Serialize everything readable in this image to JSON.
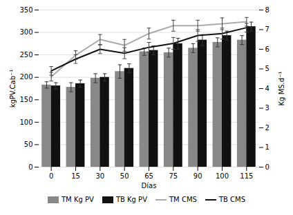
{
  "chart_data": {
    "type": "bar",
    "xlabel": "Días",
    "ylabel": "kgPV.Cab⁻¹",
    "y2label": "Kg MS.d⁻¹",
    "categories": [
      "0",
      "15",
      "30",
      "50",
      "65",
      "75",
      "90",
      "100",
      "115"
    ],
    "series": [
      {
        "name": "TM Kg PV",
        "type": "bar",
        "color": "#888888",
        "values": [
          183,
          178,
          198,
          213,
          257,
          255,
          265,
          278,
          283
        ],
        "errors": [
          7,
          10,
          10,
          15,
          8,
          10,
          10,
          10,
          10
        ]
      },
      {
        "name": "TB Kg PV",
        "type": "bar",
        "color": "#111111",
        "values": [
          181,
          186,
          200,
          220,
          260,
          275,
          283,
          293,
          313
        ],
        "errors": [
          7,
          8,
          8,
          10,
          10,
          12,
          12,
          10,
          10
        ]
      },
      {
        "name": "TM CMS",
        "type": "line",
        "axis": "y2",
        "color": "#aaaaaa",
        "values": [
          4.6,
          5.7,
          6.5,
          6.2,
          6.8,
          7.2,
          7.2,
          7.3,
          7.4
        ],
        "errors": [
          0.22,
          0.22,
          0.25,
          0.3,
          0.28,
          0.28,
          0.28,
          0.3,
          0.22
        ]
      },
      {
        "name": "TB CMS",
        "type": "line",
        "axis": "y2",
        "color": "#111111",
        "values": [
          4.9,
          5.5,
          6.0,
          5.8,
          6.1,
          6.3,
          6.7,
          6.8,
          7.1
        ],
        "errors": [
          0.22,
          0.22,
          0.22,
          0.28,
          0.25,
          0.3,
          0.3,
          0.28,
          0.22
        ]
      }
    ],
    "ylim": [
      0,
      350
    ],
    "yticks": [
      0,
      50,
      100,
      150,
      200,
      250,
      300,
      350
    ],
    "y2lim": [
      0,
      8
    ],
    "y2ticks": [
      0,
      1,
      2,
      3,
      4,
      5,
      6,
      7,
      8
    ],
    "grid": true,
    "legend": "bottom"
  }
}
